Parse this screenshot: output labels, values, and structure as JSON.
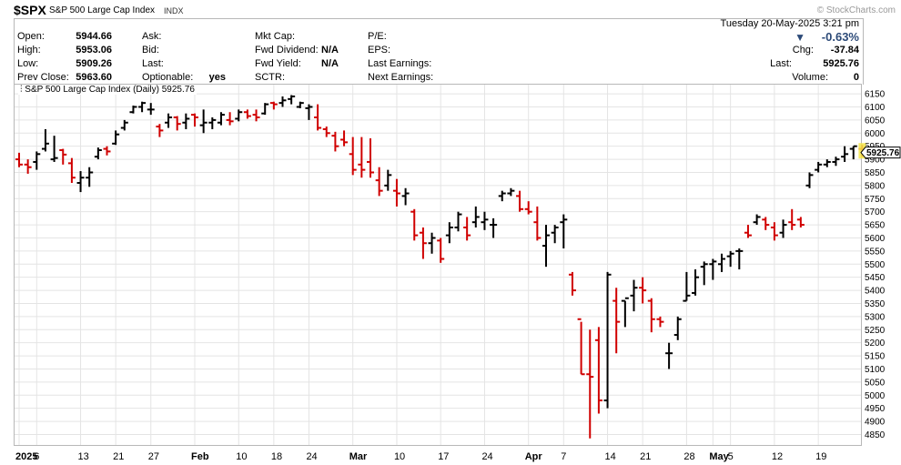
{
  "header": {
    "ticker": "$SPX",
    "name": "S&P 500 Large Cap Index",
    "type": "INDX",
    "brand": "© StockCharts.com"
  },
  "info": {
    "col1": [
      {
        "label": "Open:",
        "value": "5944.66"
      },
      {
        "label": "High:",
        "value": "5953.06"
      },
      {
        "label": "Low:",
        "value": "5909.26"
      },
      {
        "label": "Prev Close:",
        "value": "5963.60"
      }
    ],
    "col2": [
      {
        "label": "Ask:",
        "value": ""
      },
      {
        "label": "Bid:",
        "value": ""
      },
      {
        "label": "Last:",
        "value": ""
      },
      {
        "label": "Optionable:",
        "value": "yes"
      }
    ],
    "col3": [
      {
        "label": "Mkt Cap:",
        "value": ""
      },
      {
        "label": "Fwd Dividend:",
        "value": "N/A"
      },
      {
        "label": "Fwd Yield:",
        "value": "N/A"
      },
      {
        "label": "SCTR:",
        "value": ""
      }
    ],
    "col4": [
      {
        "label": "P/E:",
        "value": ""
      },
      {
        "label": "EPS:",
        "value": ""
      },
      {
        "label": "Last Earnings:",
        "value": ""
      },
      {
        "label": "Next Earnings:",
        "value": ""
      }
    ],
    "datetime": "Tuesday  20-May-2025  3:21 pm",
    "change_pct": "-0.63%",
    "chg_label": "Chg:",
    "chg_value": "-37.84",
    "last_label": "Last:",
    "last_value": "5925.76",
    "volume_label": "Volume:",
    "volume_value": "0",
    "down_color": "#2c4a78"
  },
  "chart_data": {
    "type": "ohlc",
    "plot_label": "S&P 500 Large Cap Index (Daily) 5925.76",
    "last_price_tag": "5925.76",
    "up_color": "#000000",
    "down_color": "#d00000",
    "ylim": [
      4810,
      6185
    ],
    "y_ticks": [
      4850,
      4900,
      4950,
      5000,
      5050,
      5100,
      5150,
      5200,
      5250,
      5300,
      5350,
      5400,
      5450,
      5500,
      5550,
      5600,
      5650,
      5700,
      5750,
      5800,
      5850,
      5900,
      5950,
      6000,
      6050,
      6100,
      6150
    ],
    "x_labels": [
      {
        "i": 0,
        "text": "2025",
        "bold": true
      },
      {
        "i": 2,
        "text": "6",
        "bold": false
      },
      {
        "i": 7,
        "text": "13",
        "bold": false
      },
      {
        "i": 11,
        "text": "21",
        "bold": false
      },
      {
        "i": 15,
        "text": "27",
        "bold": false
      },
      {
        "i": 20,
        "text": "Feb",
        "bold": true
      },
      {
        "i": 25,
        "text": "10",
        "bold": false
      },
      {
        "i": 29,
        "text": "18",
        "bold": false
      },
      {
        "i": 33,
        "text": "24",
        "bold": false
      },
      {
        "i": 38,
        "text": "Mar",
        "bold": true
      },
      {
        "i": 43,
        "text": "10",
        "bold": false
      },
      {
        "i": 48,
        "text": "17",
        "bold": false
      },
      {
        "i": 53,
        "text": "24",
        "bold": false
      },
      {
        "i": 58,
        "text": "Apr",
        "bold": true
      },
      {
        "i": 62,
        "text": "7",
        "bold": false
      },
      {
        "i": 67,
        "text": "14",
        "bold": false
      },
      {
        "i": 71,
        "text": "21",
        "bold": false
      },
      {
        "i": 76,
        "text": "28",
        "bold": false
      },
      {
        "i": 79,
        "text": "May",
        "bold": true
      },
      {
        "i": 81,
        "text": "5",
        "bold": false
      },
      {
        "i": 86,
        "text": "12",
        "bold": false
      },
      {
        "i": 91,
        "text": "19",
        "bold": false
      }
    ],
    "bars": [
      {
        "o": 5900,
        "h": 5925,
        "l": 5870,
        "c": 5880
      },
      {
        "o": 5880,
        "h": 5900,
        "l": 5845,
        "c": 5870
      },
      {
        "o": 5890,
        "h": 5930,
        "l": 5860,
        "c": 5920
      },
      {
        "o": 5940,
        "h": 6015,
        "l": 5930,
        "c": 5960
      },
      {
        "o": 5900,
        "h": 5990,
        "l": 5890,
        "c": 5905
      },
      {
        "o": 5935,
        "h": 5940,
        "l": 5880,
        "c": 5918
      },
      {
        "o": 5885,
        "h": 5905,
        "l": 5810,
        "c": 5830
      },
      {
        "o": 5810,
        "h": 5855,
        "l": 5775,
        "c": 5830
      },
      {
        "o": 5830,
        "h": 5870,
        "l": 5795,
        "c": 5850
      },
      {
        "o": 5910,
        "h": 5945,
        "l": 5900,
        "c": 5935
      },
      {
        "o": 5940,
        "h": 5950,
        "l": 5915,
        "c": 5930
      },
      {
        "o": 5960,
        "h": 6010,
        "l": 5955,
        "c": 5995
      },
      {
        "o": 6020,
        "h": 6050,
        "l": 6010,
        "c": 6040
      },
      {
        "o": 6080,
        "h": 6105,
        "l": 6075,
        "c": 6100
      },
      {
        "o": 6100,
        "h": 6120,
        "l": 6080,
        "c": 6115
      },
      {
        "o": 6090,
        "h": 6115,
        "l": 6070,
        "c": 6090
      },
      {
        "o": 6025,
        "h": 6035,
        "l": 5985,
        "c": 6010
      },
      {
        "o": 6040,
        "h": 6075,
        "l": 6020,
        "c": 6060
      },
      {
        "o": 6060,
        "h": 6065,
        "l": 6010,
        "c": 6035
      },
      {
        "o": 6040,
        "h": 6075,
        "l": 6015,
        "c": 6055
      },
      {
        "o": 6070,
        "h": 6075,
        "l": 6025,
        "c": 6060
      },
      {
        "o": 6030,
        "h": 6090,
        "l": 6000,
        "c": 6040
      },
      {
        "o": 6040,
        "h": 6060,
        "l": 6015,
        "c": 6050
      },
      {
        "o": 6040,
        "h": 6080,
        "l": 6030,
        "c": 6070
      },
      {
        "o": 6050,
        "h": 6080,
        "l": 6030,
        "c": 6045
      },
      {
        "o": 6055,
        "h": 6090,
        "l": 6045,
        "c": 6080
      },
      {
        "o": 6080,
        "h": 6090,
        "l": 6055,
        "c": 6065
      },
      {
        "o": 6070,
        "h": 6090,
        "l": 6045,
        "c": 6060
      },
      {
        "o": 6075,
        "h": 6115,
        "l": 6070,
        "c": 6110
      },
      {
        "o": 6115,
        "h": 6120,
        "l": 6090,
        "c": 6110
      },
      {
        "o": 6115,
        "h": 6140,
        "l": 6100,
        "c": 6125
      },
      {
        "o": 6130,
        "h": 6145,
        "l": 6110,
        "c": 6140
      },
      {
        "o": 6100,
        "h": 6120,
        "l": 6095,
        "c": 6115
      },
      {
        "o": 6095,
        "h": 6110,
        "l": 6050,
        "c": 6100
      },
      {
        "o": 6060,
        "h": 6110,
        "l": 6010,
        "c": 6020
      },
      {
        "o": 6015,
        "h": 6025,
        "l": 5985,
        "c": 6000
      },
      {
        "o": 5990,
        "h": 6005,
        "l": 5930,
        "c": 5950
      },
      {
        "o": 5975,
        "h": 6010,
        "l": 5950,
        "c": 5965
      },
      {
        "o": 5920,
        "h": 5985,
        "l": 5840,
        "c": 5860
      },
      {
        "o": 5880,
        "h": 5985,
        "l": 5830,
        "c": 5860
      },
      {
        "o": 5890,
        "h": 5980,
        "l": 5830,
        "c": 5850
      },
      {
        "o": 5820,
        "h": 5870,
        "l": 5760,
        "c": 5780
      },
      {
        "o": 5800,
        "h": 5860,
        "l": 5780,
        "c": 5840
      },
      {
        "o": 5780,
        "h": 5825,
        "l": 5720,
        "c": 5770
      },
      {
        "o": 5760,
        "h": 5790,
        "l": 5725,
        "c": 5770
      },
      {
        "o": 5700,
        "h": 5710,
        "l": 5590,
        "c": 5610
      },
      {
        "o": 5620,
        "h": 5640,
        "l": 5520,
        "c": 5580
      },
      {
        "o": 5580,
        "h": 5620,
        "l": 5540,
        "c": 5600
      },
      {
        "o": 5590,
        "h": 5600,
        "l": 5505,
        "c": 5520
      },
      {
        "o": 5610,
        "h": 5660,
        "l": 5580,
        "c": 5640
      },
      {
        "o": 5640,
        "h": 5700,
        "l": 5625,
        "c": 5690
      },
      {
        "o": 5640,
        "h": 5680,
        "l": 5590,
        "c": 5610
      },
      {
        "o": 5660,
        "h": 5720,
        "l": 5640,
        "c": 5680
      },
      {
        "o": 5660,
        "h": 5700,
        "l": 5630,
        "c": 5670
      },
      {
        "o": 5650,
        "h": 5675,
        "l": 5600,
        "c": 5650
      },
      {
        "o": 5760,
        "h": 5780,
        "l": 5740,
        "c": 5770
      },
      {
        "o": 5770,
        "h": 5790,
        "l": 5760,
        "c": 5780
      },
      {
        "o": 5760,
        "h": 5780,
        "l": 5700,
        "c": 5710
      },
      {
        "o": 5710,
        "h": 5740,
        "l": 5690,
        "c": 5700
      },
      {
        "o": 5660,
        "h": 5720,
        "l": 5590,
        "c": 5600
      },
      {
        "o": 5570,
        "h": 5650,
        "l": 5490,
        "c": 5610
      },
      {
        "o": 5620,
        "h": 5650,
        "l": 5580,
        "c": 5640
      },
      {
        "o": 5660,
        "h": 5690,
        "l": 5560,
        "c": 5670
      },
      {
        "o": 5460,
        "h": 5470,
        "l": 5380,
        "c": 5400
      },
      {
        "o": 5290,
        "h": 5280,
        "l": 5080,
        "c": 5080
      },
      {
        "o": 5080,
        "h": 5250,
        "l": 4835,
        "c": 5070
      },
      {
        "o": 5210,
        "h": 5260,
        "l": 4930,
        "c": 4980
      },
      {
        "o": 4980,
        "h": 5470,
        "l": 4950,
        "c": 5460
      },
      {
        "o": 5360,
        "h": 5410,
        "l": 5160,
        "c": 5280
      },
      {
        "o": 5360,
        "h": 5360,
        "l": 5260,
        "c": 5370
      },
      {
        "o": 5380,
        "h": 5440,
        "l": 5320,
        "c": 5410
      },
      {
        "o": 5410,
        "h": 5450,
        "l": 5350,
        "c": 5400
      },
      {
        "o": 5360,
        "h": 5370,
        "l": 5240,
        "c": 5290
      },
      {
        "o": 5290,
        "h": 5300,
        "l": 5260,
        "c": 5280
      },
      {
        "o": 5160,
        "h": 5200,
        "l": 5100,
        "c": 5160
      },
      {
        "o": 5230,
        "h": 5300,
        "l": 5210,
        "c": 5290
      },
      {
        "o": 5360,
        "h": 5470,
        "l": 5360,
        "c": 5380
      },
      {
        "o": 5390,
        "h": 5480,
        "l": 5380,
        "c": 5450
      },
      {
        "o": 5490,
        "h": 5510,
        "l": 5420,
        "c": 5500
      },
      {
        "o": 5500,
        "h": 5520,
        "l": 5440,
        "c": 5510
      },
      {
        "o": 5500,
        "h": 5540,
        "l": 5470,
        "c": 5520
      },
      {
        "o": 5530,
        "h": 5550,
        "l": 5490,
        "c": 5540
      },
      {
        "o": 5550,
        "h": 5560,
        "l": 5480,
        "c": 5550
      },
      {
        "o": 5620,
        "h": 5650,
        "l": 5600,
        "c": 5610
      },
      {
        "o": 5660,
        "h": 5690,
        "l": 5650,
        "c": 5680
      },
      {
        "o": 5670,
        "h": 5680,
        "l": 5630,
        "c": 5650
      },
      {
        "o": 5640,
        "h": 5660,
        "l": 5590,
        "c": 5610
      },
      {
        "o": 5620,
        "h": 5670,
        "l": 5600,
        "c": 5650
      },
      {
        "o": 5660,
        "h": 5710,
        "l": 5630,
        "c": 5650
      },
      {
        "o": 5670,
        "h": 5680,
        "l": 5640,
        "c": 5650
      },
      {
        "o": 5800,
        "h": 5850,
        "l": 5790,
        "c": 5840
      },
      {
        "o": 5860,
        "h": 5890,
        "l": 5850,
        "c": 5880
      },
      {
        "o": 5880,
        "h": 5900,
        "l": 5870,
        "c": 5890
      },
      {
        "o": 5890,
        "h": 5910,
        "l": 5875,
        "c": 5900
      },
      {
        "o": 5910,
        "h": 5950,
        "l": 5890,
        "c": 5920
      },
      {
        "o": 5940,
        "h": 5950,
        "l": 5900,
        "c": 5950
      },
      {
        "o": 5940,
        "h": 5955,
        "l": 5910,
        "c": 5920
      }
    ]
  }
}
